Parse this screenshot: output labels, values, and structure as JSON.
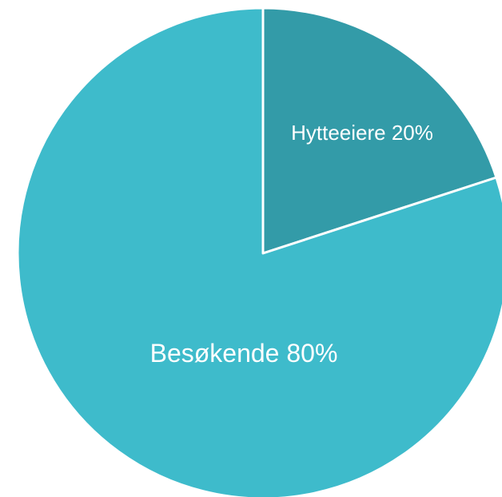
{
  "chart_data": {
    "type": "pie",
    "categories": [
      "Hytteeiere",
      "Besøkende"
    ],
    "values": [
      20,
      80
    ],
    "value_labels": [
      "20%",
      "80%"
    ],
    "colors": [
      "#339ba8",
      "#3ebbcb"
    ]
  }
}
